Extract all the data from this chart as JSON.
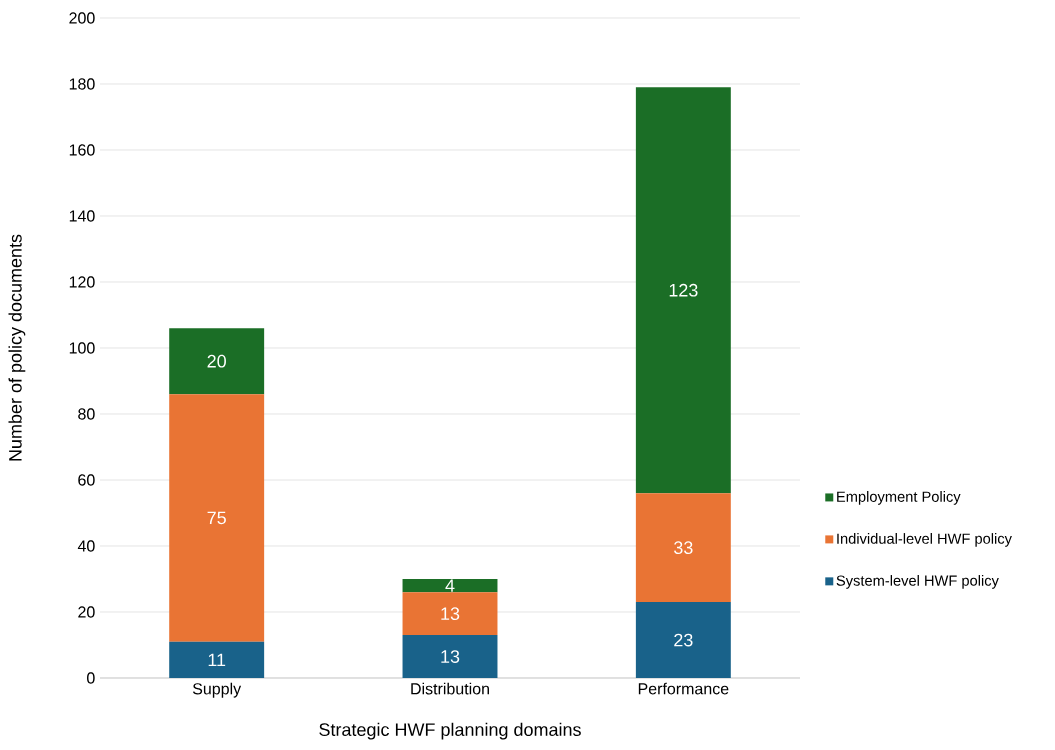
{
  "chart_data": {
    "type": "bar",
    "stacked": true,
    "xlabel": "Strategic HWF planning domains",
    "ylabel": "Number of policy documents",
    "categories": [
      "Supply",
      "Distribution",
      "Performance"
    ],
    "series": [
      {
        "name": "System-level HWF policy",
        "color": "#19628a",
        "values": [
          11,
          13,
          23
        ]
      },
      {
        "name": "Individual-level HWF policy",
        "color": "#e97434",
        "values": [
          75,
          13,
          33
        ]
      },
      {
        "name": "Employment Policy",
        "color": "#1b6e26",
        "values": [
          20,
          4,
          123
        ]
      }
    ],
    "ylim": [
      0,
      200
    ],
    "yticks": [
      0,
      20,
      40,
      60,
      80,
      100,
      120,
      140,
      160,
      180,
      200
    ],
    "grid": "y",
    "legend": "right",
    "data_labels": true
  }
}
